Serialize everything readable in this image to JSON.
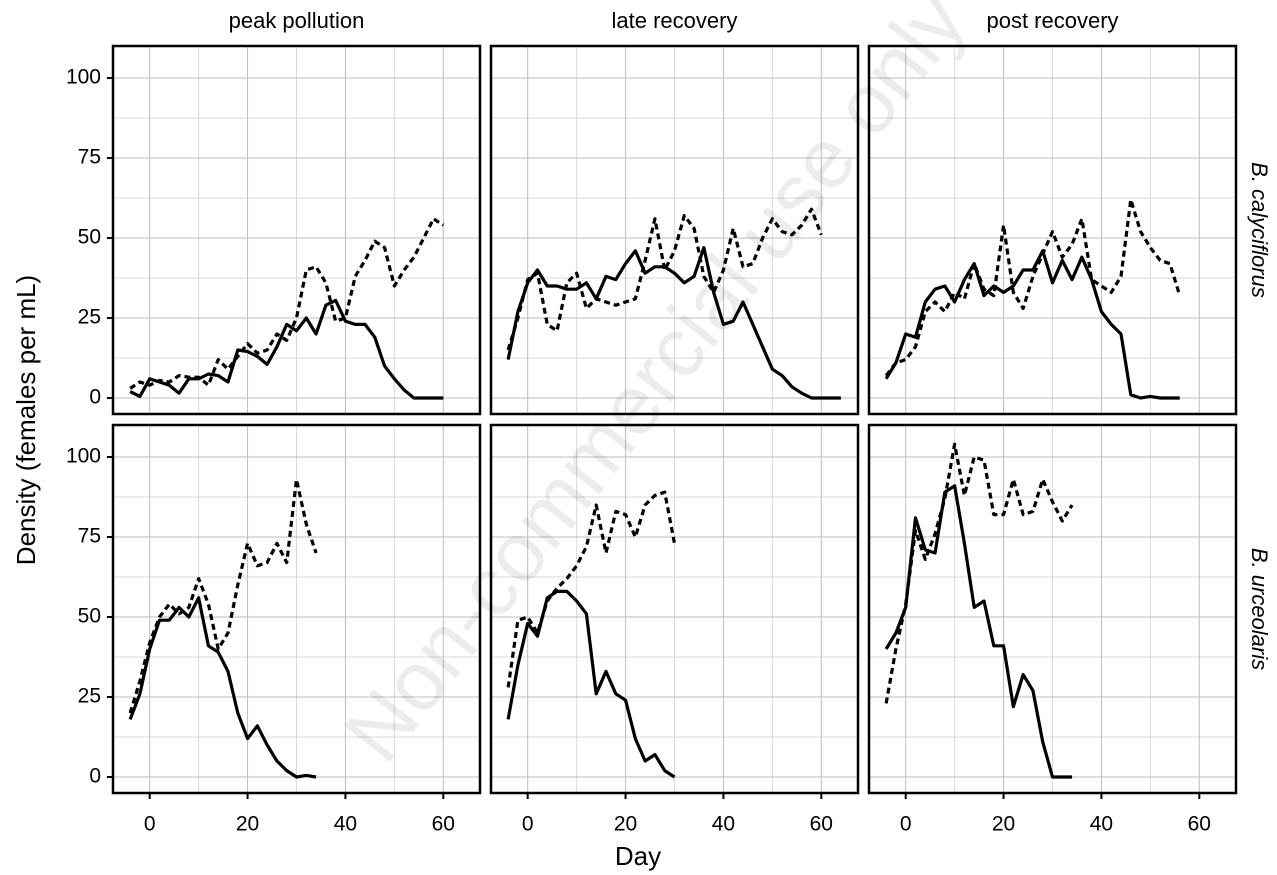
{
  "column_titles": [
    "peak pollution",
    "late recovery",
    "post recovery"
  ],
  "row_titles": [
    "B. calyciflorus",
    "B. urceolaris"
  ],
  "x_label": "Day",
  "y_label": "Density (females per mL)",
  "watermark": "Non-commercial use only",
  "x_axis": {
    "lim": [
      -7.5,
      67.5
    ],
    "ticks": [
      0,
      20,
      40,
      60
    ],
    "minor": [
      10,
      30,
      50
    ]
  },
  "y_axis": {
    "lim": [
      -5,
      110
    ],
    "ticks": [
      0,
      25,
      50,
      75,
      100
    ],
    "minor": [
      12.5,
      37.5,
      62.5,
      87.5
    ]
  },
  "grid": true,
  "chart_data": [
    {
      "type": "line",
      "x": [
        -4,
        -2,
        0,
        2,
        4,
        6,
        8,
        10,
        12,
        14,
        16,
        18,
        20,
        22,
        24,
        26,
        28,
        30,
        32,
        34,
        36,
        38,
        40,
        42,
        44,
        46,
        48,
        50,
        52,
        54,
        56,
        58,
        60
      ],
      "series": [
        {
          "color": "#000000",
          "dash": false,
          "values": [
            2,
            0.5,
            6,
            5,
            4,
            1.5,
            6,
            6,
            7.5,
            7,
            5,
            15,
            14.5,
            13,
            10.5,
            16,
            23,
            21,
            25,
            20,
            29,
            30.5,
            24,
            23,
            23,
            19,
            10,
            6,
            2.5,
            0,
            0,
            0,
            0
          ]
        },
        {
          "color": "#000000",
          "dash": true,
          "values": [
            3,
            5,
            4,
            5.5,
            5,
            7,
            6.5,
            6.5,
            4,
            12,
            9,
            13,
            17,
            14,
            15,
            20,
            18,
            25,
            40,
            41,
            36,
            24,
            25,
            38,
            43,
            49,
            47,
            35,
            40,
            44,
            50,
            56,
            54
          ]
        }
      ]
    },
    {
      "type": "line",
      "x": [
        -4,
        -2,
        0,
        2,
        4,
        6,
        8,
        10,
        12,
        14,
        16,
        18,
        20,
        22,
        24,
        26,
        28,
        30,
        32,
        34,
        36,
        38,
        40,
        42,
        44,
        46,
        48,
        50,
        52,
        54,
        56,
        58,
        60,
        62,
        64
      ],
      "series": [
        {
          "color": "#000000",
          "dash": false,
          "values": [
            12,
            27,
            36,
            40,
            35,
            35,
            34,
            34,
            36,
            31,
            38,
            37,
            42,
            46,
            39,
            41,
            41,
            39,
            36,
            38,
            47,
            33,
            23,
            24,
            30,
            23,
            16,
            9,
            7,
            3.5,
            1.5,
            0,
            0,
            0,
            0
          ]
        },
        {
          "color": "#000000",
          "dash": true,
          "values": [
            15,
            25,
            37,
            39,
            23,
            21,
            36,
            39,
            28,
            31,
            30,
            29,
            30,
            31,
            43,
            56,
            40,
            46,
            57,
            53,
            38,
            33,
            40,
            53,
            41,
            42,
            50,
            56,
            52,
            51,
            54,
            59,
            51,
            null,
            null
          ]
        }
      ]
    },
    {
      "type": "line",
      "x": [
        -4,
        -2,
        0,
        2,
        4,
        6,
        8,
        10,
        12,
        14,
        16,
        18,
        20,
        22,
        24,
        26,
        28,
        30,
        32,
        34,
        36,
        38,
        40,
        42,
        44,
        46,
        48,
        50,
        52,
        54,
        56
      ],
      "series": [
        {
          "color": "#000000",
          "dash": false,
          "values": [
            6,
            11,
            20,
            19,
            30,
            34,
            35,
            30,
            37,
            42,
            32,
            35,
            33,
            35,
            40,
            40,
            46,
            36,
            43,
            37,
            44,
            37,
            27,
            23,
            20,
            1,
            0,
            0.5,
            0,
            0,
            0
          ]
        },
        {
          "color": "#000000",
          "dash": true,
          "values": [
            7,
            11,
            12,
            16,
            27,
            30,
            27,
            33,
            31,
            42,
            34,
            32,
            54,
            33,
            28,
            38,
            45,
            52,
            44,
            48,
            56,
            37,
            35,
            33,
            38,
            62,
            52,
            47,
            43,
            42,
            32
          ]
        }
      ]
    },
    {
      "type": "line",
      "x": [
        -4,
        -2,
        0,
        2,
        4,
        6,
        8,
        10,
        12,
        14,
        16,
        18,
        20,
        22,
        24,
        26,
        28,
        30,
        32,
        34
      ],
      "series": [
        {
          "color": "#000000",
          "dash": false,
          "values": [
            18,
            26,
            40,
            49,
            49,
            53,
            50,
            56,
            41,
            39,
            33,
            20,
            12,
            16,
            10,
            5,
            2,
            0,
            0.5,
            0
          ]
        },
        {
          "color": "#000000",
          "dash": true,
          "values": [
            20,
            30,
            42,
            50,
            54,
            51,
            53,
            62,
            54,
            40,
            45,
            60,
            73,
            66,
            67,
            73,
            67,
            93,
            79,
            70
          ]
        }
      ]
    },
    {
      "type": "line",
      "x": [
        -4,
        -2,
        0,
        2,
        4,
        6,
        8,
        10,
        12,
        14,
        16,
        18,
        20,
        22,
        24,
        26,
        28,
        30
      ],
      "series": [
        {
          "color": "#000000",
          "dash": false,
          "values": [
            18,
            35,
            48,
            44,
            56,
            58,
            58,
            55,
            51,
            26,
            33,
            26,
            24,
            12,
            5,
            7,
            2,
            0
          ]
        },
        {
          "color": "#000000",
          "dash": true,
          "values": [
            28,
            49,
            50,
            45,
            55,
            59,
            62,
            66,
            72,
            85,
            70,
            83,
            82,
            75,
            85,
            88,
            89,
            73
          ]
        }
      ]
    },
    {
      "type": "line",
      "x": [
        -4,
        -2,
        0,
        2,
        4,
        6,
        8,
        10,
        12,
        14,
        16,
        18,
        20,
        22,
        24,
        26,
        28,
        30,
        32,
        34
      ],
      "series": [
        {
          "color": "#000000",
          "dash": false,
          "values": [
            40,
            45,
            53,
            81,
            71,
            70,
            89,
            91,
            73,
            53,
            55,
            41,
            41,
            22,
            32,
            27,
            11,
            0,
            0,
            0
          ]
        },
        {
          "color": "#000000",
          "dash": true,
          "values": [
            23,
            40,
            54,
            77,
            68,
            76,
            87,
            104,
            88,
            100,
            99,
            82,
            82,
            93,
            82,
            83,
            93,
            86,
            80,
            85
          ]
        }
      ]
    }
  ]
}
